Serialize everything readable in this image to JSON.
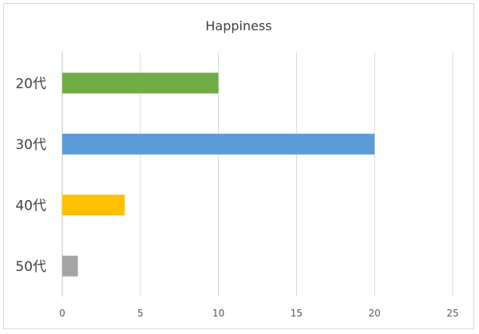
{
  "chart_data": {
    "type": "bar",
    "orientation": "horizontal",
    "title": "Happiness",
    "categories": [
      "20代",
      "30代",
      "40代",
      "50代"
    ],
    "values": [
      10,
      20,
      4,
      1
    ],
    "colors": [
      "#70ad47",
      "#5b9bd5",
      "#ffc000",
      "#a5a5a5"
    ],
    "xlim": [
      0,
      25
    ],
    "xticks": [
      "0",
      "5",
      "10",
      "15",
      "20",
      "25"
    ],
    "grid": "vertical",
    "legend": "none",
    "xlabel": "",
    "ylabel": ""
  }
}
